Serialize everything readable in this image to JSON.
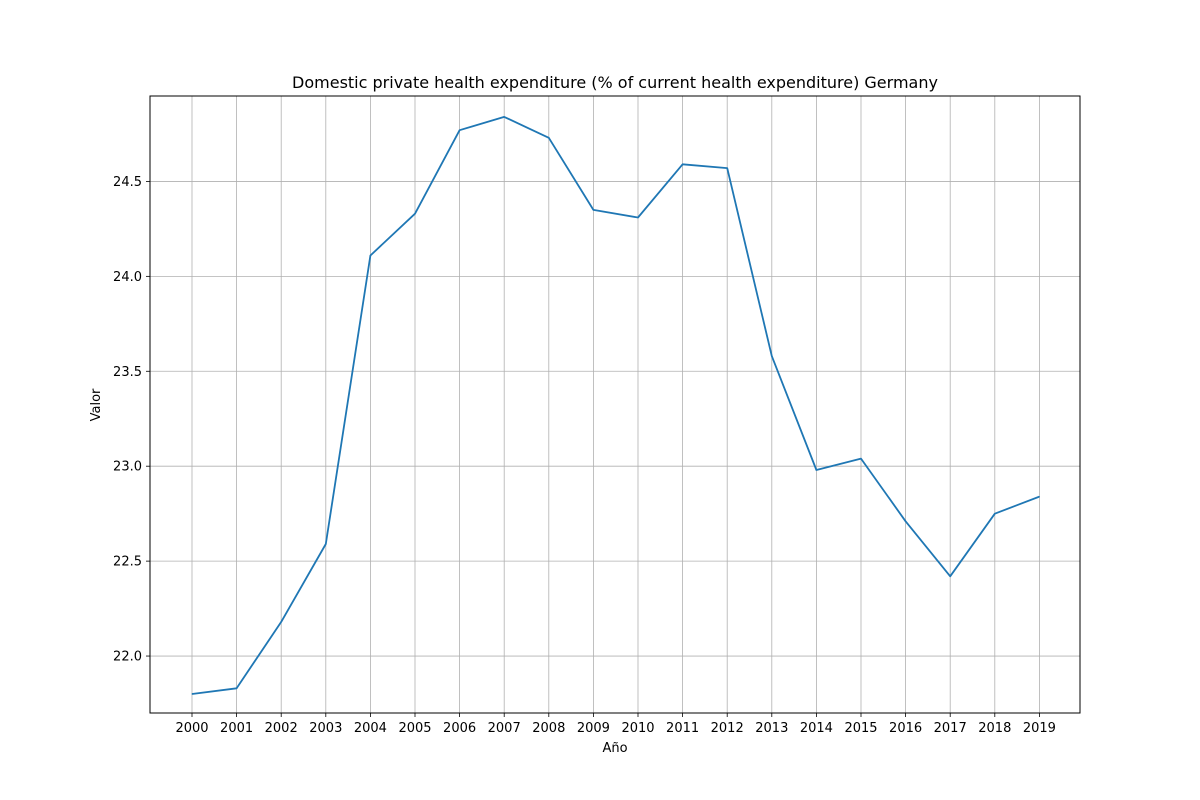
{
  "chart_data": {
    "type": "line",
    "title": "Domestic private health expenditure (% of current health expenditure) Germany",
    "xlabel": "Año",
    "ylabel": "Valor",
    "x": [
      "2000",
      "2001",
      "2002",
      "2003",
      "2004",
      "2005",
      "2006",
      "2007",
      "2008",
      "2009",
      "2010",
      "2011",
      "2012",
      "2013",
      "2014",
      "2015",
      "2016",
      "2017",
      "2018",
      "2019"
    ],
    "series": [
      {
        "values": [
          21.8,
          21.83,
          22.18,
          22.59,
          24.11,
          24.33,
          24.77,
          24.84,
          24.73,
          24.35,
          24.31,
          24.59,
          24.57,
          23.58,
          22.98,
          23.04,
          22.71,
          22.42,
          22.75,
          22.84
        ]
      }
    ],
    "yticks": [
      "22.0",
      "22.5",
      "23.0",
      "23.5",
      "24.0",
      "24.5"
    ],
    "ylim": [
      21.7,
      24.95
    ],
    "grid": true,
    "colors": {
      "line": "#1f77b4",
      "grid": "#b0b0b0",
      "axis": "#000000"
    }
  }
}
